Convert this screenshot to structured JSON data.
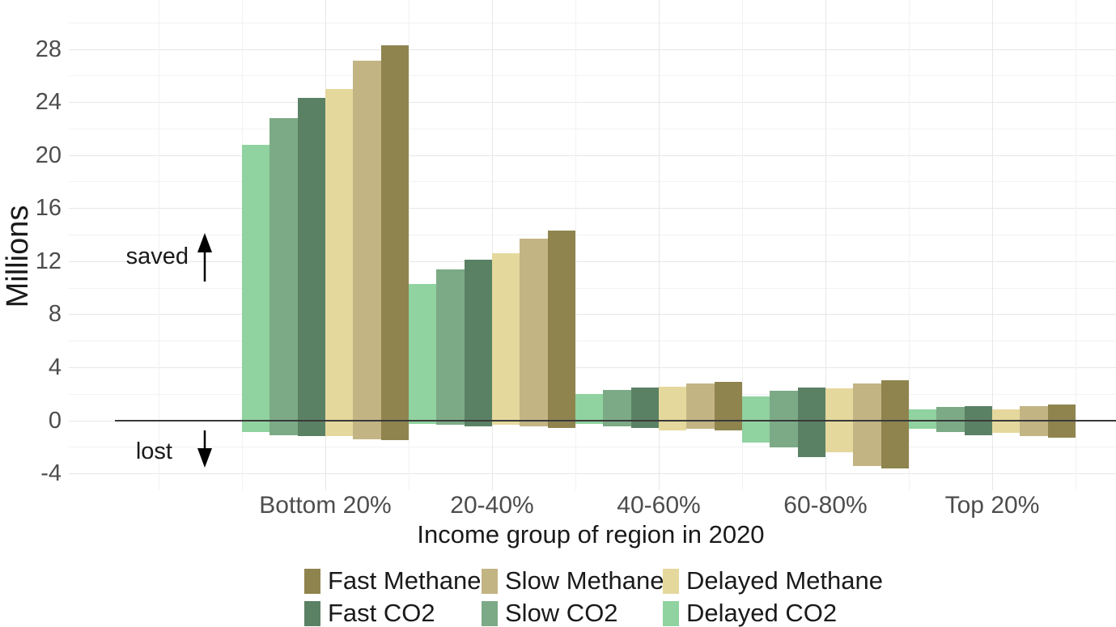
{
  "chart_data": {
    "type": "bar",
    "title": "",
    "ylabel": "Millions",
    "xlabel": "Income group of region in 2020",
    "categories": [
      "Bottom 20%",
      "20-40%",
      "40-60%",
      "60-80%",
      "Top 20%"
    ],
    "y_ticks": [
      28,
      24,
      20,
      16,
      12,
      8,
      4,
      0,
      -4
    ],
    "y_minor_gridlines": [
      30,
      26,
      22,
      18,
      14,
      10,
      6,
      2,
      -2
    ],
    "ylim": [
      -6,
      31
    ],
    "grid": "faint major and minor gridlines on white background",
    "legend_position": "bottom, two rows, three columns",
    "annotations": {
      "positive": "saved",
      "negative": "lost"
    },
    "series": [
      {
        "name": "Delayed CO2",
        "color": "#90d2a0",
        "saved": [
          20.8,
          10.3,
          2.0,
          1.8,
          0.8
        ],
        "lost": [
          -0.9,
          -0.25,
          -0.3,
          -1.7,
          -0.65
        ]
      },
      {
        "name": "Slow CO2",
        "color": "#7caa86",
        "saved": [
          22.8,
          11.4,
          2.3,
          2.2,
          1.0
        ],
        "lost": [
          -1.1,
          -0.35,
          -0.45,
          -2.05,
          -0.9
        ]
      },
      {
        "name": "Fast CO2",
        "color": "#5b8165",
        "saved": [
          24.3,
          12.1,
          2.5,
          2.45,
          1.05
        ],
        "lost": [
          -1.2,
          -0.45,
          -0.6,
          -2.8,
          -1.1
        ]
      },
      {
        "name": "Delayed Methane",
        "color": "#e5d89d",
        "saved": [
          25.0,
          12.6,
          2.55,
          2.4,
          0.85
        ],
        "lost": [
          -1.2,
          -0.35,
          -0.75,
          -2.4,
          -0.95
        ]
      },
      {
        "name": "Slow Methane",
        "color": "#c3b484",
        "saved": [
          27.1,
          13.7,
          2.75,
          2.8,
          1.1
        ],
        "lost": [
          -1.4,
          -0.45,
          -0.65,
          -3.45,
          -1.2
        ]
      },
      {
        "name": "Fast Methane",
        "color": "#8f844e",
        "saved": [
          28.3,
          14.3,
          2.9,
          3.05,
          1.2
        ],
        "lost": [
          -1.5,
          -0.6,
          -0.75,
          -3.6,
          -1.3
        ]
      }
    ],
    "legend_rows": [
      [
        "Fast Methane",
        "Slow Methane",
        "Delayed Methane"
      ],
      [
        "Fast CO2",
        "Slow CO2",
        "Delayed CO2"
      ]
    ]
  },
  "colors": {
    "background": "#ffffff",
    "grid_major": "#e7e7e7",
    "grid_minor": "#f2f2f2",
    "zero_line": "#3a3a3a",
    "axis_text": "#4d4d4d",
    "title_text": "#1a1a1a"
  }
}
